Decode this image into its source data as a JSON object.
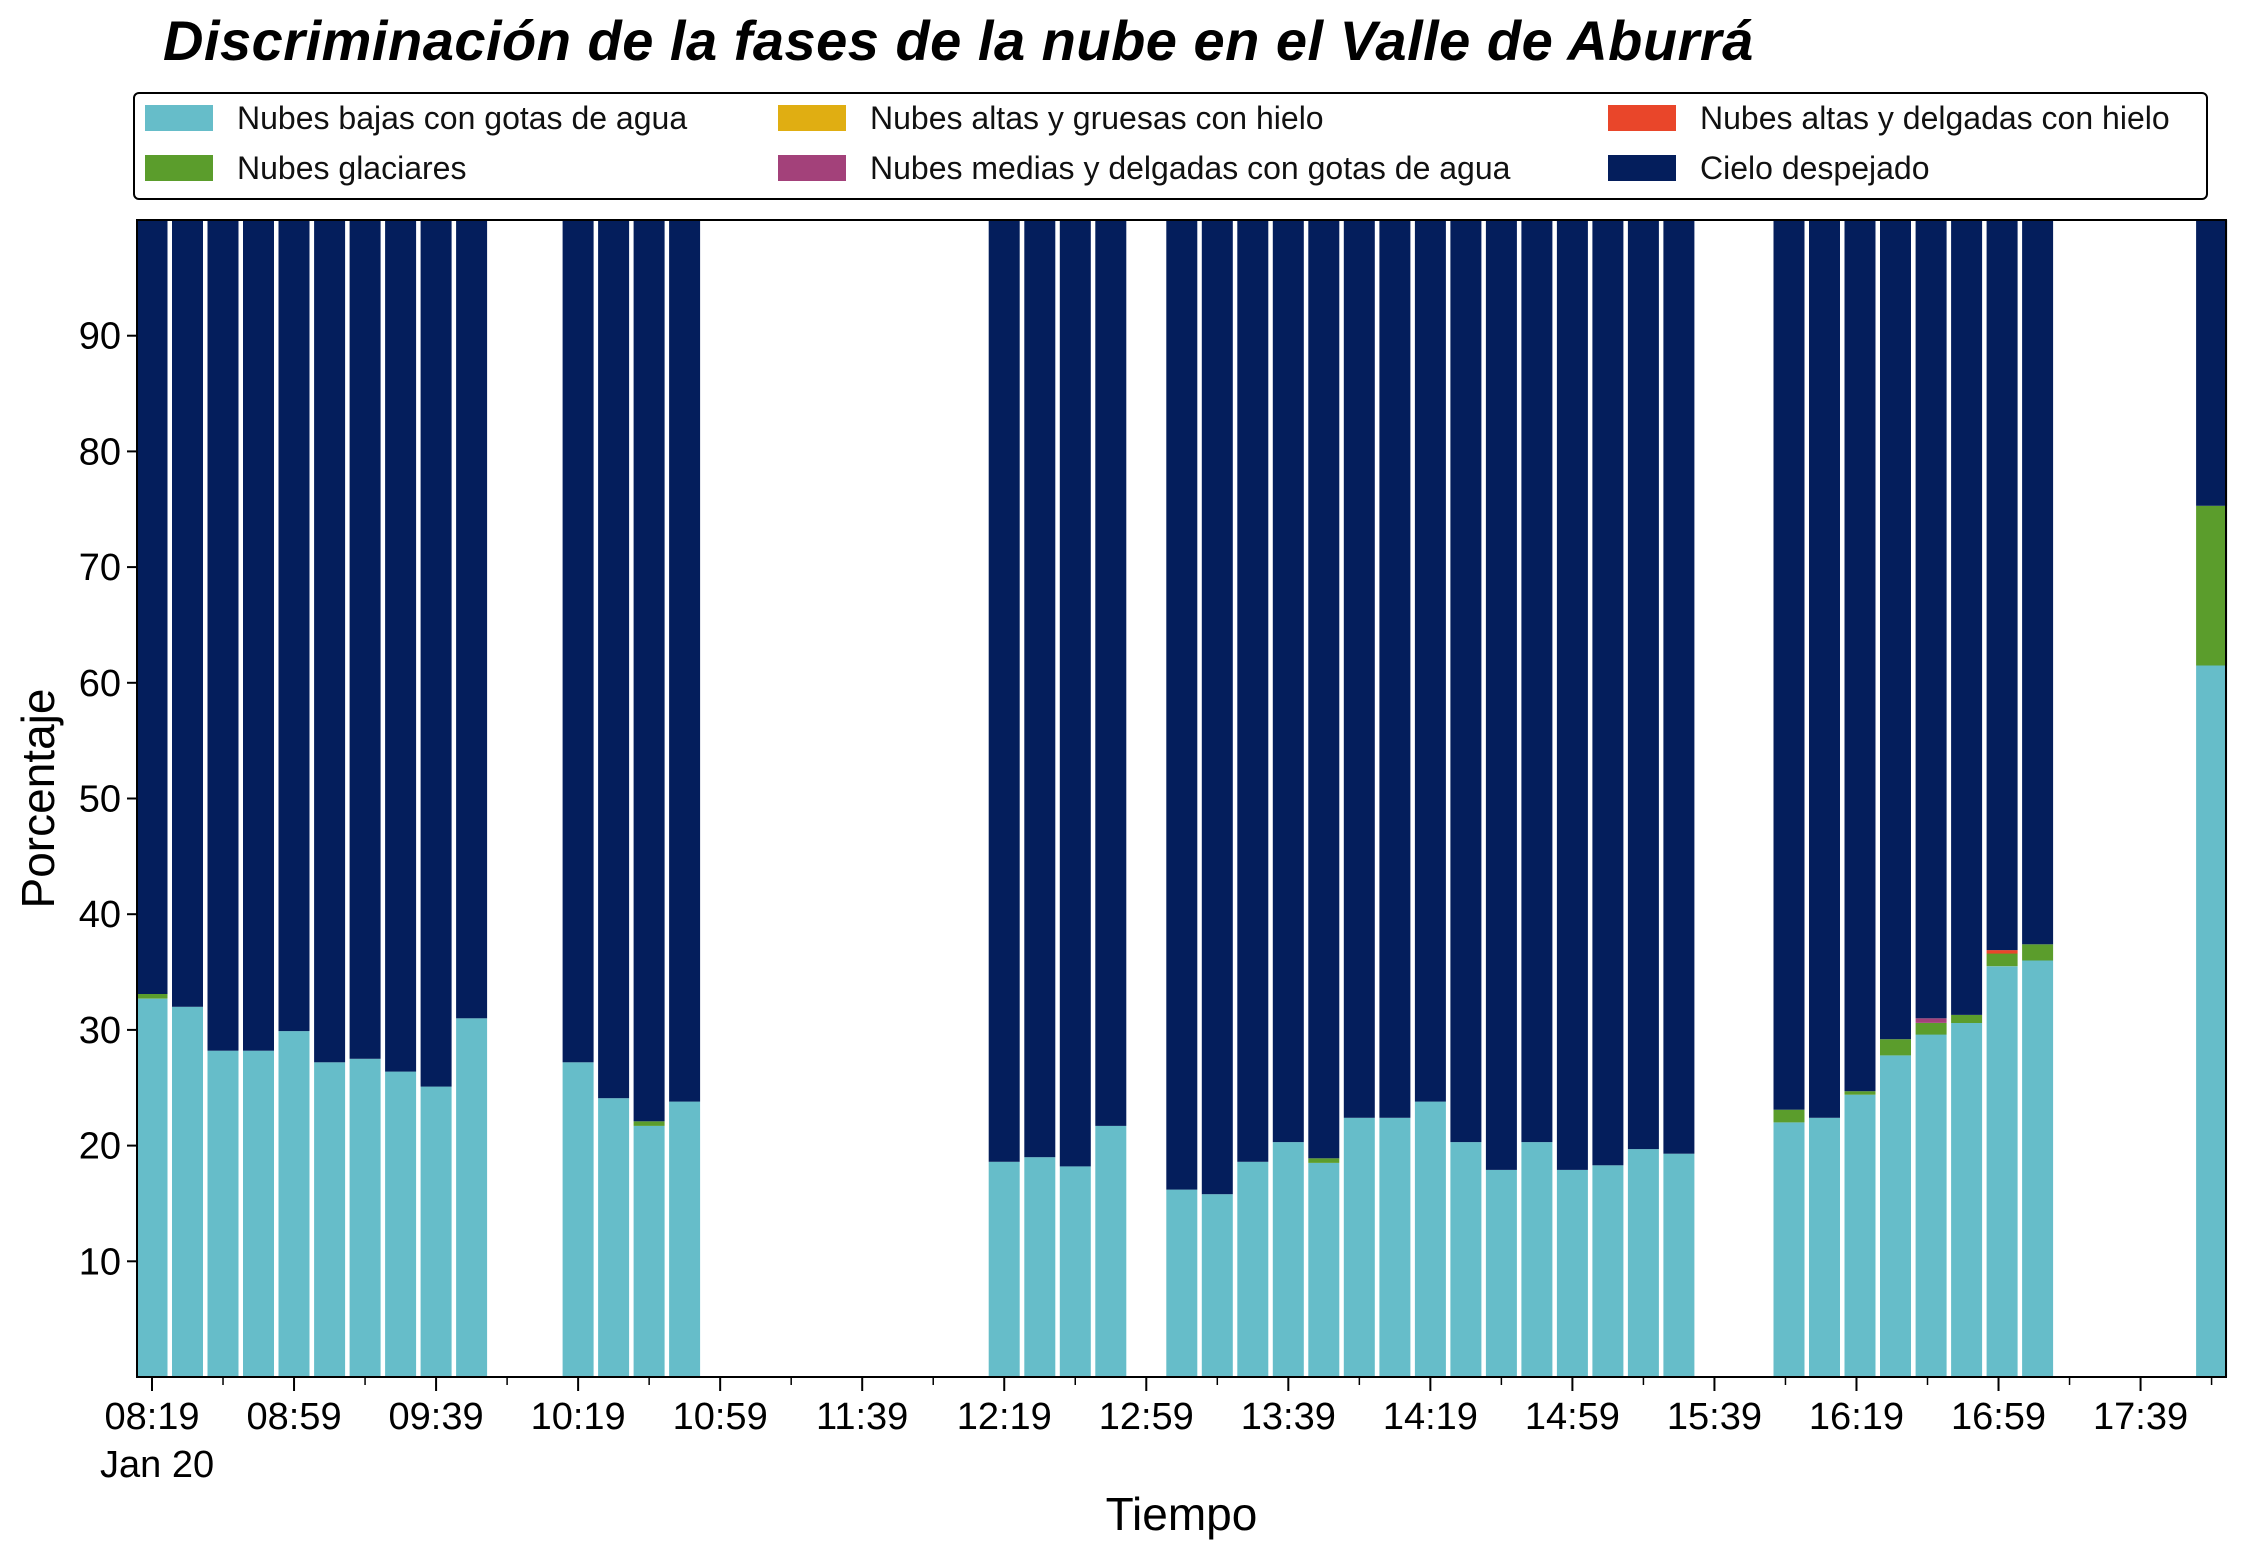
{
  "chart_data": {
    "type": "bar",
    "stacked": true,
    "title": "Discriminación de la fases de la nube en el Valle de Aburrá",
    "xlabel": "Tiempo",
    "ylabel": "Porcentaje",
    "ylim": [
      0,
      100
    ],
    "yticks": [
      10,
      20,
      30,
      40,
      50,
      60,
      70,
      80,
      90
    ],
    "xtick_labels": [
      "08:19",
      "08:59",
      "09:39",
      "10:19",
      "10:59",
      "11:39",
      "12:19",
      "12:59",
      "13:39",
      "14:19",
      "14:59",
      "15:39",
      "16:19",
      "16:59",
      "17:39"
    ],
    "xtick_date_label": "Jan 20",
    "legend_position": "top",
    "grid": false,
    "categories": [
      "08:19",
      "08:29",
      "08:39",
      "08:49",
      "08:59",
      "09:09",
      "09:19",
      "09:29",
      "09:39",
      "09:49",
      "10:19",
      "10:29",
      "10:39",
      "10:49",
      "12:19",
      "12:29",
      "12:39",
      "12:49",
      "13:09",
      "13:19",
      "13:29",
      "13:39",
      "13:49",
      "13:59",
      "14:09",
      "14:19",
      "14:29",
      "14:39",
      "14:49",
      "14:59",
      "15:09",
      "15:19",
      "15:29",
      "16:00",
      "16:10",
      "16:20",
      "16:30",
      "16:40",
      "16:50",
      "17:00",
      "17:10",
      "17:59"
    ],
    "series": [
      {
        "name": "Nubes bajas con gotas de agua",
        "color": "#66bdc9",
        "values": [
          32.7,
          32.0,
          28.2,
          28.2,
          29.9,
          27.2,
          27.5,
          26.4,
          25.1,
          31.0,
          27.2,
          24.1,
          21.7,
          23.8,
          18.6,
          19.0,
          18.2,
          21.7,
          16.2,
          15.8,
          18.6,
          20.3,
          18.5,
          22.4,
          22.4,
          23.8,
          20.3,
          17.9,
          20.3,
          17.9,
          18.3,
          19.7,
          19.3,
          22.0,
          22.4,
          24.4,
          27.8,
          29.6,
          30.6,
          35.5,
          36.0,
          61.5
        ]
      },
      {
        "name": "Nubes glaciares",
        "color": "#5b9d2c",
        "values": [
          0.4,
          0,
          0,
          0,
          0,
          0,
          0,
          0,
          0,
          0,
          0,
          0,
          0.4,
          0,
          0,
          0,
          0,
          0,
          0,
          0,
          0,
          0,
          0.4,
          0,
          0,
          0,
          0,
          0,
          0,
          0,
          0,
          0,
          0,
          1.1,
          0,
          0.3,
          1.4,
          1.0,
          0.7,
          1.1,
          1.4,
          13.8
        ]
      },
      {
        "name": "Nubes altas y gruesas con hielo",
        "color": "#e0ae12",
        "values": [
          0,
          0,
          0,
          0,
          0,
          0,
          0,
          0,
          0,
          0,
          0,
          0,
          0,
          0,
          0,
          0,
          0,
          0,
          0,
          0,
          0,
          0,
          0,
          0,
          0,
          0,
          0,
          0,
          0,
          0,
          0,
          0,
          0,
          0,
          0,
          0,
          0,
          0,
          0,
          0,
          0,
          0
        ]
      },
      {
        "name": "Nubes medias y delgadas con gotas de agua",
        "color": "#a3417a",
        "values": [
          0,
          0,
          0,
          0,
          0,
          0,
          0,
          0,
          0,
          0,
          0,
          0,
          0,
          0,
          0,
          0,
          0,
          0,
          0,
          0,
          0,
          0,
          0,
          0,
          0,
          0,
          0,
          0,
          0,
          0,
          0,
          0,
          0,
          0,
          0,
          0,
          0,
          0.4,
          0,
          0,
          0,
          0
        ]
      },
      {
        "name": "Nubes altas y delgadas con hielo",
        "color": "#e9462a",
        "values": [
          0,
          0,
          0,
          0,
          0,
          0,
          0,
          0,
          0,
          0,
          0,
          0,
          0,
          0,
          0,
          0,
          0,
          0,
          0,
          0,
          0,
          0,
          0,
          0,
          0,
          0,
          0,
          0,
          0,
          0,
          0,
          0,
          0,
          0,
          0,
          0,
          0,
          0,
          0,
          0.3,
          0,
          0
        ]
      },
      {
        "name": "Cielo despejado",
        "color": "#041e5c",
        "values": [
          66.9,
          68.0,
          71.8,
          71.8,
          70.1,
          72.8,
          72.5,
          73.6,
          74.9,
          69.0,
          72.8,
          75.9,
          77.9,
          76.2,
          81.4,
          81.0,
          81.8,
          78.3,
          83.8,
          84.2,
          81.4,
          79.7,
          81.1,
          77.6,
          77.6,
          76.2,
          79.7,
          82.1,
          79.7,
          82.1,
          81.7,
          80.3,
          80.7,
          76.9,
          77.6,
          75.3,
          70.8,
          69.0,
          68.7,
          63.1,
          62.6,
          24.7
        ]
      }
    ]
  }
}
